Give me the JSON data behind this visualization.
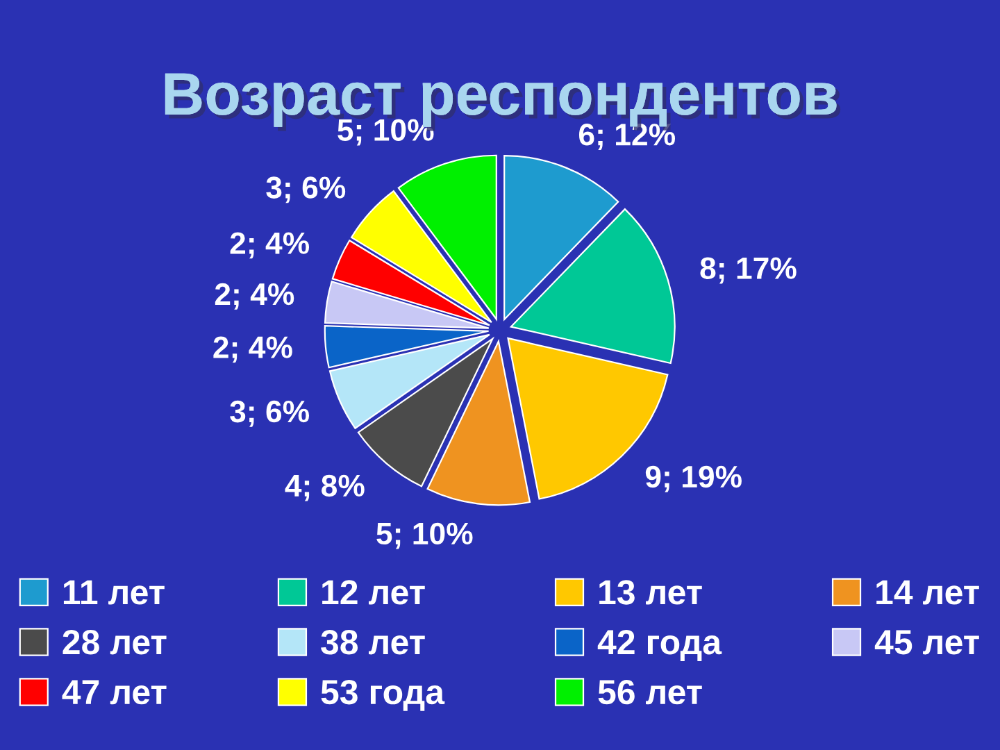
{
  "chart_data": {
    "type": "pie",
    "title": "Возраст респондентов",
    "categories": [
      "11 лет",
      "12 лет",
      "13 лет",
      "14 лет",
      "28 лет",
      "38 лет",
      "42 года",
      "45 лет",
      "47 лет",
      "53 года",
      "56 лет"
    ],
    "values": [
      6,
      8,
      9,
      5,
      4,
      3,
      2,
      2,
      2,
      3,
      5
    ],
    "colors": [
      "#1e9bcf",
      "#00c896",
      "#ffc800",
      "#ef9320",
      "#4b4b4b",
      "#b4e6f8",
      "#0a64c8",
      "#c8c8f5",
      "#ff0000",
      "#ffff00",
      "#00f000"
    ],
    "value_labels": [
      "6; 12%",
      "8; 17%",
      "9; 19%",
      "5; 10%",
      "4; 8%",
      "3; 6%",
      "2; 4%",
      "2; 4%",
      "2; 4%",
      "3; 6%",
      "5; 10%"
    ],
    "legend": "bottom"
  }
}
